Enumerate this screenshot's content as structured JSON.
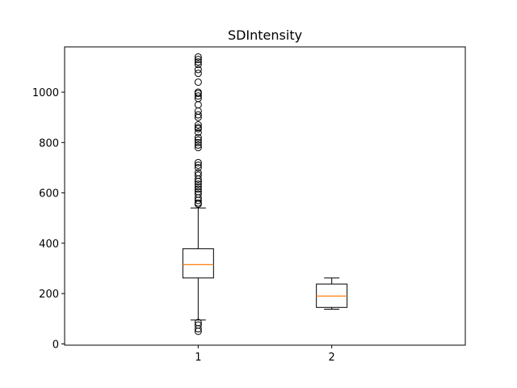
{
  "chart_data": {
    "type": "box",
    "title": "SDIntensity",
    "xlabel": "",
    "ylabel": "",
    "categories": [
      "1",
      "2"
    ],
    "ylim": [
      -5,
      1180
    ],
    "yticks": [
      0,
      200,
      400,
      600,
      800,
      1000
    ],
    "grid": false,
    "colors": {
      "median": "#ff7f0e",
      "box": "#000000"
    },
    "boxes": [
      {
        "label": "1",
        "whisker_low": 95,
        "q1": 262,
        "median": 315,
        "q3": 378,
        "whisker_high": 540,
        "outliers": [
          50,
          60,
          75,
          85,
          555,
          560,
          570,
          580,
          595,
          605,
          615,
          625,
          635,
          645,
          655,
          670,
          680,
          700,
          710,
          720,
          780,
          790,
          800,
          810,
          820,
          840,
          855,
          860,
          870,
          900,
          910,
          925,
          950,
          975,
          985,
          995,
          1000,
          1040,
          1075,
          1090,
          1110,
          1120,
          1130,
          1140
        ]
      },
      {
        "label": "2",
        "whisker_low": 138,
        "q1": 145,
        "median": 190,
        "q3": 238,
        "whisker_high": 262,
        "outliers": []
      }
    ]
  }
}
